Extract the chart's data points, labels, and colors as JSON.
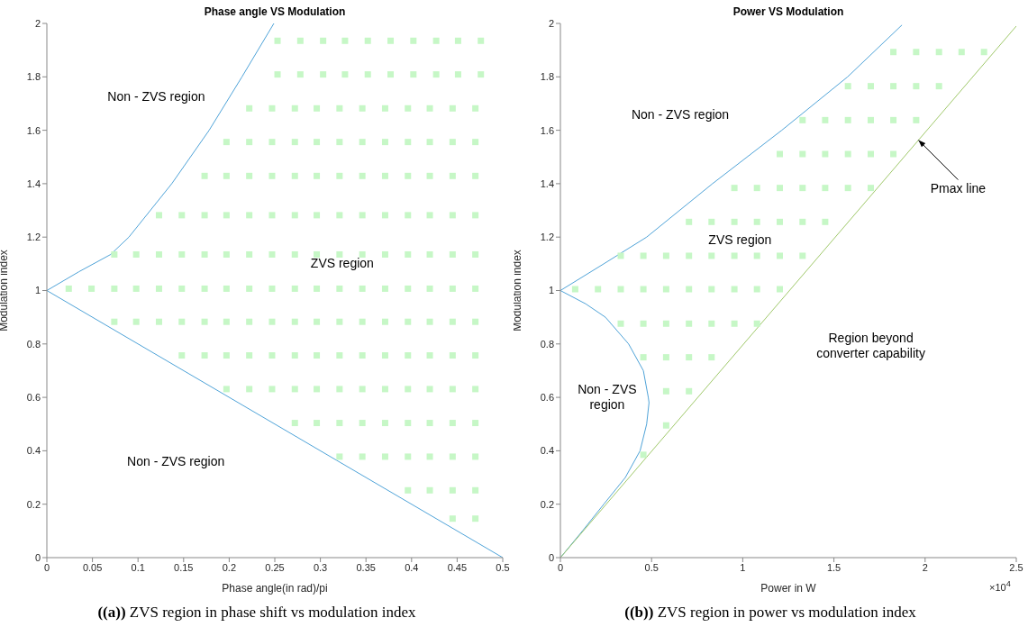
{
  "chart_data": [
    {
      "type": "line",
      "title": "Phase angle VS Modulation",
      "xlabel": "Phase angle(in rad)/pi",
      "ylabel": "Modulation index",
      "xlim": [
        0,
        0.5
      ],
      "ylim": [
        0,
        2
      ],
      "xticks": [
        0,
        0.05,
        0.1,
        0.15,
        0.2,
        0.25,
        0.3,
        0.35,
        0.4,
        0.45,
        0.5
      ],
      "yticks": [
        0,
        0.2,
        0.4,
        0.6,
        0.8,
        1,
        1.2,
        1.4,
        1.6,
        1.8,
        2
      ],
      "series": [
        {
          "marker": "none",
          "color": "#4fa3d8",
          "x": [
            0,
            0.035,
            0.07,
            0.09,
            0.137,
            0.178,
            0.214,
            0.249
          ],
          "values": [
            1,
            1.07,
            1.135,
            1.2,
            1.4,
            1.6,
            1.8,
            2
          ]
        },
        {
          "marker": "none",
          "color": "#4fa3d8",
          "x": [
            0,
            0.5
          ],
          "values": [
            1,
            0
          ]
        },
        {
          "type": "scatter",
          "marker": "square",
          "color": "#c6f7c6",
          "x": [
            0.253,
            0.278,
            0.303,
            0.327,
            0.352,
            0.377,
            0.402,
            0.427,
            0.451,
            0.476
          ],
          "values": [
            1.935,
            1.935,
            1.935,
            1.935,
            1.935,
            1.935,
            1.935,
            1.935,
            1.935,
            1.935
          ]
        },
        {
          "type": "scatter",
          "marker": "square",
          "color": "#c6f7c6",
          "x": [
            0.253,
            0.278,
            0.303,
            0.327,
            0.352,
            0.377,
            0.402,
            0.427,
            0.451,
            0.476
          ],
          "values": [
            1.809,
            1.809,
            1.809,
            1.809,
            1.809,
            1.809,
            1.809,
            1.809,
            1.809,
            1.809
          ]
        },
        {
          "type": "scatter",
          "marker": "square",
          "color": "#c6f7c6",
          "x": [
            0.222,
            0.247,
            0.272,
            0.296,
            0.321,
            0.346,
            0.371,
            0.396,
            0.42,
            0.445,
            0.47
          ],
          "values": [
            1.682,
            1.682,
            1.682,
            1.682,
            1.682,
            1.682,
            1.682,
            1.682,
            1.682,
            1.682,
            1.682
          ]
        },
        {
          "type": "scatter",
          "marker": "square",
          "color": "#c6f7c6",
          "x": [
            0.197,
            0.222,
            0.247,
            0.272,
            0.296,
            0.321,
            0.346,
            0.371,
            0.396,
            0.42,
            0.445,
            0.47
          ],
          "values": [
            1.556,
            1.556,
            1.556,
            1.556,
            1.556,
            1.556,
            1.556,
            1.556,
            1.556,
            1.556,
            1.556,
            1.556
          ]
        },
        {
          "type": "scatter",
          "marker": "square",
          "color": "#c6f7c6",
          "x": [
            0.173,
            0.197,
            0.222,
            0.247,
            0.272,
            0.296,
            0.321,
            0.346,
            0.371,
            0.396,
            0.42,
            0.445,
            0.47
          ],
          "values": [
            1.429,
            1.429,
            1.429,
            1.429,
            1.429,
            1.429,
            1.429,
            1.429,
            1.429,
            1.429,
            1.429,
            1.429,
            1.429
          ]
        },
        {
          "type": "scatter",
          "marker": "square",
          "color": "#c6f7c6",
          "x": [
            0.123,
            0.148,
            0.173,
            0.197,
            0.222,
            0.247,
            0.272,
            0.296,
            0.321,
            0.346,
            0.371,
            0.396,
            0.42,
            0.445,
            0.47
          ],
          "values": [
            1.282,
            1.282,
            1.282,
            1.282,
            1.282,
            1.282,
            1.282,
            1.282,
            1.282,
            1.282,
            1.282,
            1.282,
            1.282,
            1.282,
            1.282
          ]
        },
        {
          "type": "scatter",
          "marker": "square",
          "color": "#c6f7c6",
          "x": [
            0.074,
            0.098,
            0.123,
            0.148,
            0.173,
            0.197,
            0.222,
            0.247,
            0.272,
            0.296,
            0.321,
            0.346,
            0.371,
            0.396,
            0.42,
            0.445,
            0.47
          ],
          "values": [
            1.135,
            1.135,
            1.135,
            1.135,
            1.135,
            1.135,
            1.135,
            1.135,
            1.135,
            1.135,
            1.135,
            1.135,
            1.135,
            1.135,
            1.135,
            1.135,
            1.135
          ]
        },
        {
          "type": "scatter",
          "marker": "square",
          "color": "#c6f7c6",
          "x": [
            0.024,
            0.049,
            0.074,
            0.098,
            0.123,
            0.148,
            0.173,
            0.197,
            0.222,
            0.247,
            0.272,
            0.296,
            0.321,
            0.346,
            0.371,
            0.396,
            0.42,
            0.445,
            0.47
          ],
          "values": [
            1.007,
            1.007,
            1.007,
            1.007,
            1.007,
            1.007,
            1.007,
            1.007,
            1.007,
            1.007,
            1.007,
            1.007,
            1.007,
            1.007,
            1.007,
            1.007,
            1.007,
            1.007,
            1.007
          ]
        },
        {
          "type": "scatter",
          "marker": "square",
          "color": "#c6f7c6",
          "x": [
            0.074,
            0.098,
            0.123,
            0.148,
            0.173,
            0.197,
            0.222,
            0.247,
            0.272,
            0.296,
            0.321,
            0.346,
            0.371,
            0.396,
            0.42,
            0.445,
            0.47
          ],
          "values": [
            0.883,
            0.883,
            0.883,
            0.883,
            0.883,
            0.883,
            0.883,
            0.883,
            0.883,
            0.883,
            0.883,
            0.883,
            0.883,
            0.883,
            0.883,
            0.883,
            0.883
          ]
        },
        {
          "type": "scatter",
          "marker": "square",
          "color": "#c6f7c6",
          "x": [
            0.148,
            0.173,
            0.197,
            0.222,
            0.247,
            0.272,
            0.296,
            0.321,
            0.346,
            0.371,
            0.396,
            0.42,
            0.445,
            0.47
          ],
          "values": [
            0.757,
            0.757,
            0.757,
            0.757,
            0.757,
            0.757,
            0.757,
            0.757,
            0.757,
            0.757,
            0.757,
            0.757,
            0.757,
            0.757
          ]
        },
        {
          "type": "scatter",
          "marker": "square",
          "color": "#c6f7c6",
          "x": [
            0.197,
            0.222,
            0.247,
            0.272,
            0.296,
            0.321,
            0.346,
            0.371,
            0.396,
            0.42,
            0.445,
            0.47
          ],
          "values": [
            0.631,
            0.631,
            0.631,
            0.631,
            0.631,
            0.631,
            0.631,
            0.631,
            0.631,
            0.631,
            0.631,
            0.631
          ]
        },
        {
          "type": "scatter",
          "marker": "square",
          "color": "#c6f7c6",
          "x": [
            0.272,
            0.296,
            0.321,
            0.346,
            0.371,
            0.396,
            0.42,
            0.445,
            0.47
          ],
          "values": [
            0.504,
            0.504,
            0.504,
            0.504,
            0.504,
            0.504,
            0.504,
            0.504,
            0.504
          ]
        },
        {
          "type": "scatter",
          "marker": "square",
          "color": "#c6f7c6",
          "x": [
            0.321,
            0.346,
            0.371,
            0.396,
            0.42,
            0.445,
            0.47
          ],
          "values": [
            0.378,
            0.378,
            0.378,
            0.378,
            0.378,
            0.378,
            0.378
          ]
        },
        {
          "type": "scatter",
          "marker": "square",
          "color": "#c6f7c6",
          "x": [
            0.396,
            0.42,
            0.445,
            0.47
          ],
          "values": [
            0.252,
            0.252,
            0.252,
            0.252
          ]
        },
        {
          "type": "scatter",
          "marker": "square",
          "color": "#c6f7c6",
          "x": [
            0.445,
            0.47
          ],
          "values": [
            0.146,
            0.146
          ]
        }
      ],
      "annotations": [
        "((a)) ZVS region in phase shift vs modulation index",
        "Non - ZVS region",
        "ZVS region",
        "Non - ZVS region"
      ]
    },
    {
      "type": "line",
      "title": "Power VS Modulation",
      "xlabel": "Power in W",
      "ylabel": "Modulation index",
      "xlim": [
        0,
        2.5
      ],
      "ylim": [
        0,
        2
      ],
      "xticks": [
        0,
        0.5,
        1,
        1.5,
        2,
        2.5
      ],
      "yticks": [
        0,
        0.2,
        0.4,
        0.6,
        0.8,
        1,
        1.2,
        1.4,
        1.6,
        1.8,
        2
      ],
      "series": [
        {
          "marker": "none",
          "color": "#4fa3d8",
          "x": [
            0,
            0.238,
            0.473,
            0.834,
            1.214,
            1.575,
            1.873
          ],
          "values": [
            1,
            1.1,
            1.2,
            1.4,
            1.6,
            1.8,
            1.994
          ]
        },
        {
          "marker": "none",
          "color": "#4fa3d8",
          "x": [
            0,
            0.139,
            0.247,
            0.374,
            0.455,
            0.482,
            0.486,
            0.473,
            0.437,
            0.356,
            0.238,
            0.121,
            0
          ],
          "values": [
            1,
            0.95,
            0.9,
            0.8,
            0.7,
            0.6,
            0.58,
            0.5,
            0.4,
            0.3,
            0.2,
            0.1,
            0
          ]
        },
        {
          "marker": "none",
          "color": "#9fc86a",
          "x": [
            0,
            2.5
          ],
          "values": [
            0,
            1.99
          ]
        },
        {
          "type": "scatter",
          "marker": "square",
          "color": "#c6f7c6",
          "x": [
            1.826,
            1.951,
            2.076,
            2.2,
            2.323
          ],
          "values": [
            1.893,
            1.893,
            1.893,
            1.893,
            1.893
          ]
        },
        {
          "type": "scatter",
          "marker": "square",
          "color": "#c6f7c6",
          "x": [
            1.577,
            1.702,
            1.826,
            1.951,
            2.076
          ],
          "values": [
            1.765,
            1.765,
            1.765,
            1.765,
            1.765
          ]
        },
        {
          "type": "scatter",
          "marker": "square",
          "color": "#c6f7c6",
          "x": [
            1.328,
            1.452,
            1.577,
            1.702,
            1.826,
            1.951
          ],
          "values": [
            1.638,
            1.638,
            1.638,
            1.638,
            1.638,
            1.638
          ]
        },
        {
          "type": "scatter",
          "marker": "square",
          "color": "#c6f7c6",
          "x": [
            1.203,
            1.328,
            1.452,
            1.577,
            1.702,
            1.826
          ],
          "values": [
            1.511,
            1.511,
            1.511,
            1.511,
            1.511,
            1.511
          ]
        },
        {
          "type": "scatter",
          "marker": "square",
          "color": "#c6f7c6",
          "x": [
            0.954,
            1.078,
            1.203,
            1.328,
            1.452,
            1.577,
            1.702
          ],
          "values": [
            1.384,
            1.384,
            1.384,
            1.384,
            1.384,
            1.384,
            1.384
          ]
        },
        {
          "type": "scatter",
          "marker": "square",
          "color": "#c6f7c6",
          "x": [
            0.705,
            0.829,
            0.954,
            1.078,
            1.203,
            1.328,
            1.452
          ],
          "values": [
            1.257,
            1.257,
            1.257,
            1.257,
            1.257,
            1.257,
            1.257
          ]
        },
        {
          "type": "scatter",
          "marker": "square",
          "color": "#c6f7c6",
          "x": [
            0.331,
            0.455,
            0.58,
            0.705,
            0.829,
            0.954,
            1.078,
            1.203,
            1.328
          ],
          "values": [
            1.13,
            1.13,
            1.13,
            1.13,
            1.13,
            1.13,
            1.13,
            1.13,
            1.13
          ]
        },
        {
          "type": "scatter",
          "marker": "square",
          "color": "#c6f7c6",
          "x": [
            0.081,
            0.206,
            0.331,
            0.455,
            0.58,
            0.705,
            0.829,
            0.954,
            1.078,
            1.203
          ],
          "values": [
            1.005,
            1.005,
            1.005,
            1.005,
            1.005,
            1.005,
            1.005,
            1.005,
            1.005,
            1.005
          ]
        },
        {
          "type": "scatter",
          "marker": "square",
          "color": "#c6f7c6",
          "x": [
            0.331,
            0.455,
            0.58,
            0.705,
            0.829,
            0.954,
            1.078
          ],
          "values": [
            0.876,
            0.876,
            0.876,
            0.876,
            0.876,
            0.876,
            0.876
          ]
        },
        {
          "type": "scatter",
          "marker": "square",
          "color": "#c6f7c6",
          "x": [
            0.455,
            0.58,
            0.705,
            0.829
          ],
          "values": [
            0.75,
            0.75,
            0.75,
            0.75
          ]
        },
        {
          "type": "scatter",
          "marker": "square",
          "color": "#c6f7c6",
          "x": [
            0.58,
            0.705
          ],
          "values": [
            0.623,
            0.623
          ]
        },
        {
          "type": "scatter",
          "marker": "square",
          "color": "#c6f7c6",
          "x": [
            0.58
          ],
          "values": [
            0.495
          ]
        },
        {
          "type": "scatter",
          "marker": "square",
          "color": "#c6f7c6",
          "x": [
            0.455
          ],
          "values": [
            0.385
          ]
        }
      ],
      "annotations": [
        "((b)) ZVS region in power vs modulation index",
        "×10$^{4}$",
        "Non - ZVS region",
        "ZVS region",
        "Non - ZVS\nregion",
        "Region beyond\nconverter capability",
        {
          "text": "Pmax line",
          "x": 1.9635,
          "y": 1.563
        }
      ]
    }
  ]
}
